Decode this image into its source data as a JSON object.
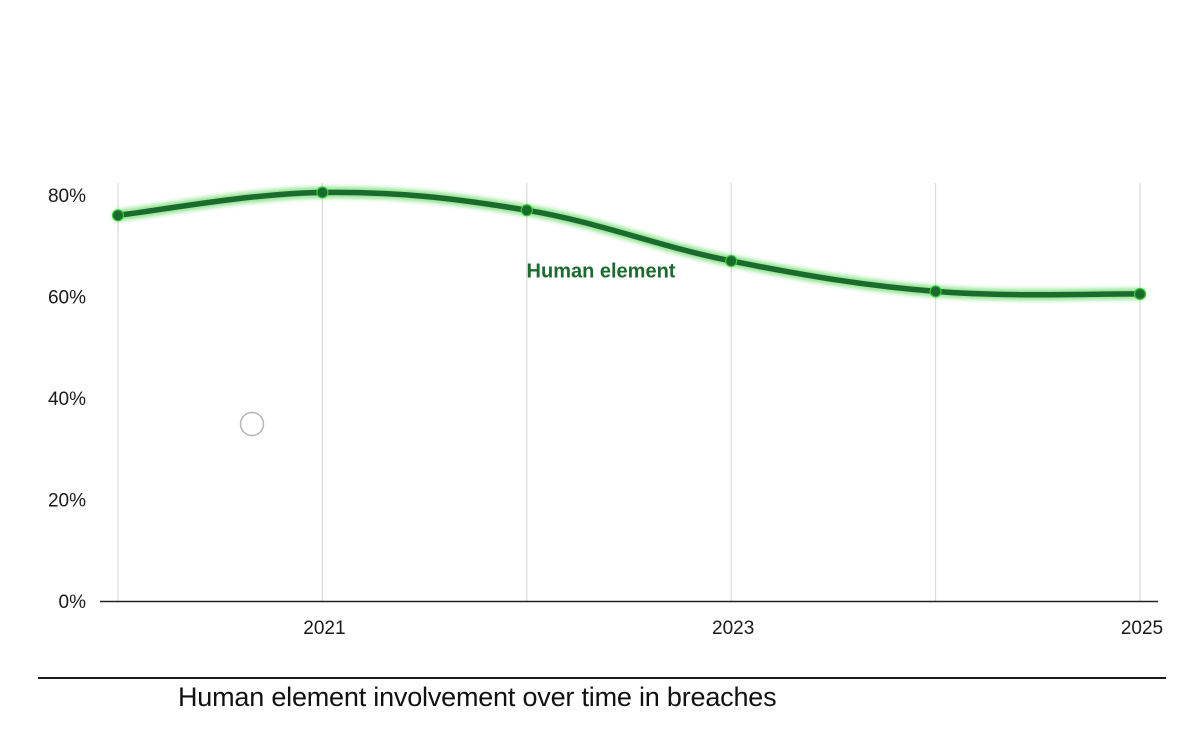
{
  "chart_data": {
    "type": "line",
    "title": "",
    "caption": "Human element involvement over time in breaches",
    "xlabel": "",
    "ylabel": "",
    "x": [
      2020,
      2021,
      2022,
      2023,
      2024,
      2025
    ],
    "x_tick_labels": [
      "2021",
      "2023",
      "2025"
    ],
    "x_tick_values": [
      2021,
      2023,
      2025
    ],
    "y_tick_labels": [
      "0%",
      "20%",
      "40%",
      "60%",
      "80%"
    ],
    "y_tick_values": [
      0,
      20,
      40,
      60,
      80
    ],
    "ylim": [
      0,
      80
    ],
    "xlim": [
      2020,
      2025
    ],
    "grid": "vertical",
    "legend": "none",
    "series": [
      {
        "name": "Human element",
        "values": [
          76,
          80.5,
          77,
          67,
          61,
          60.5
        ],
        "color": "#1c6b2e",
        "glow_color": "#33cc33"
      }
    ]
  }
}
